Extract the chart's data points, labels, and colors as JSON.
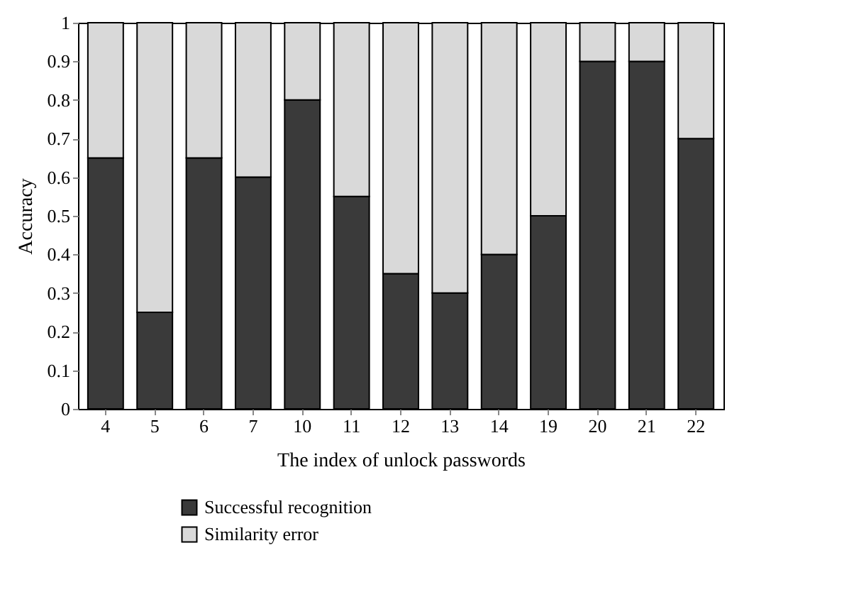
{
  "chart_data": {
    "type": "bar",
    "stacked": true,
    "xlabel": "The index of unlock passwords",
    "ylabel": "Accuracy",
    "categories": [
      "4",
      "5",
      "6",
      "7",
      "10",
      "11",
      "12",
      "13",
      "14",
      "19",
      "20",
      "21",
      "22"
    ],
    "series": [
      {
        "name": "Successful recognition",
        "color": "#3a3a3a",
        "values": [
          0.65,
          0.25,
          0.65,
          0.6,
          0.8,
          0.55,
          0.35,
          0.3,
          0.4,
          0.5,
          0.9,
          0.9,
          0.7
        ]
      },
      {
        "name": "Similarity error",
        "color": "#d9d9d9",
        "values": [
          0.35,
          0.75,
          0.35,
          0.4,
          0.2,
          0.45,
          0.65,
          0.7,
          0.6,
          0.5,
          0.1,
          0.1,
          0.3
        ]
      }
    ],
    "ylim": [
      0,
      1
    ],
    "yticks": [
      0,
      0.1,
      0.2,
      0.3,
      0.4,
      0.5,
      0.6,
      0.7,
      0.8,
      0.9,
      1
    ],
    "grid": false,
    "legend": "bottom left"
  }
}
